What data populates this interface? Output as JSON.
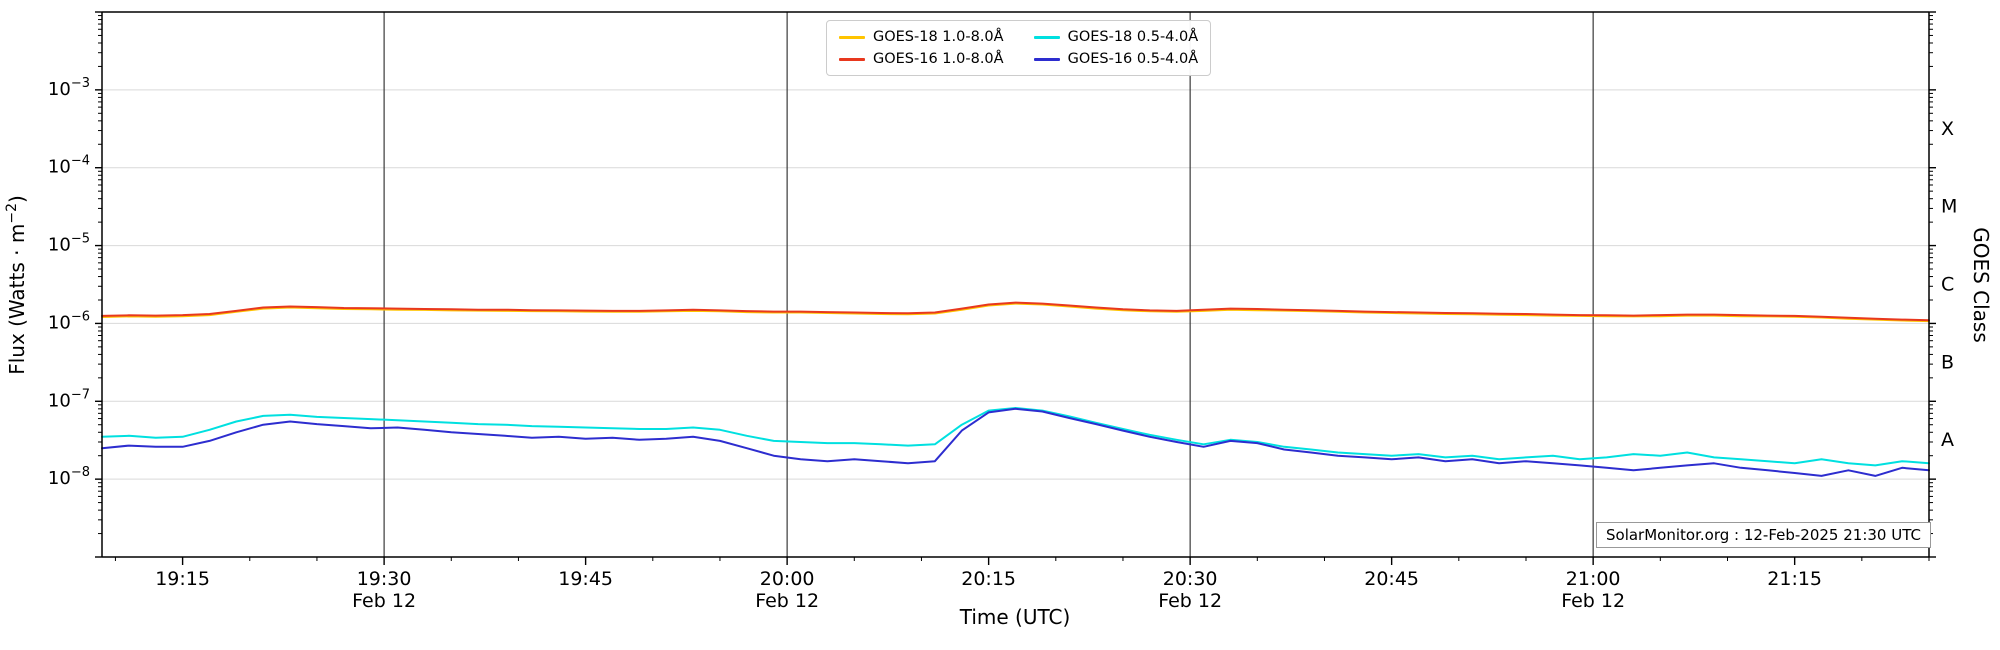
{
  "chart_data": {
    "type": "line",
    "title": "",
    "xlabel": "Time (UTC)",
    "ylabel": "Flux (Watts · m⁻²)",
    "ylabel_parts": {
      "prefix": "Flux (Watts · m",
      "sup": "−2",
      "suffix": ")"
    },
    "y2label": "GOES Class",
    "annotation": "SolarMonitor.org : 12-Feb-2025 21:30 UTC",
    "grid": {
      "h_color": "#d9d9d9",
      "v_color": "#3a3a3a",
      "v_line_minutes": [
        30,
        60,
        90,
        120
      ]
    },
    "x_axis": {
      "base_time": "19:00",
      "start_minutes": 9,
      "end_minutes": 145,
      "minor_tick_step_minutes": 5,
      "date_label": "Feb 12",
      "date_tick_minutes": [
        30,
        60,
        90,
        120
      ],
      "major_ticks": [
        {
          "minute": 15,
          "label": "19:15"
        },
        {
          "minute": 30,
          "label": "19:30"
        },
        {
          "minute": 45,
          "label": "19:45"
        },
        {
          "minute": 60,
          "label": "20:00"
        },
        {
          "minute": 75,
          "label": "20:15"
        },
        {
          "minute": 90,
          "label": "20:30"
        },
        {
          "minute": 105,
          "label": "20:45"
        },
        {
          "minute": 120,
          "label": "21:00"
        },
        {
          "minute": 135,
          "label": "21:15"
        }
      ]
    },
    "y_axis": {
      "scale": "log",
      "min": 1e-09,
      "max": 0.01,
      "labeled_decades": [
        -3,
        -4,
        -5,
        -6,
        -7,
        -8
      ]
    },
    "goes_classes": [
      {
        "label": "A",
        "flux": 3.16e-08
      },
      {
        "label": "B",
        "flux": 3.16e-07
      },
      {
        "label": "C",
        "flux": 3.16e-06
      },
      {
        "label": "M",
        "flux": 3.16e-05
      },
      {
        "label": "X",
        "flux": 0.000316
      }
    ],
    "x_minutes": [
      9,
      11,
      13,
      15,
      17,
      19,
      21,
      23,
      25,
      27,
      29,
      31,
      33,
      35,
      37,
      39,
      41,
      43,
      45,
      47,
      49,
      51,
      53,
      55,
      57,
      59,
      61,
      63,
      65,
      67,
      69,
      71,
      73,
      75,
      77,
      79,
      81,
      83,
      85,
      87,
      89,
      91,
      93,
      95,
      97,
      99,
      101,
      103,
      105,
      107,
      109,
      111,
      113,
      115,
      117,
      119,
      121,
      123,
      125,
      127,
      129,
      131,
      133,
      135,
      137,
      139,
      141,
      143,
      145
    ],
    "series": [
      {
        "name": "GOES-18 1.0-8.0Å",
        "color": "#ffc400",
        "unit_scale": 1e-06,
        "values": [
          1.21,
          1.23,
          1.22,
          1.24,
          1.28,
          1.41,
          1.55,
          1.6,
          1.57,
          1.53,
          1.52,
          1.5,
          1.49,
          1.47,
          1.46,
          1.45,
          1.44,
          1.43,
          1.42,
          1.41,
          1.41,
          1.43,
          1.45,
          1.43,
          1.4,
          1.38,
          1.38,
          1.36,
          1.34,
          1.32,
          1.31,
          1.34,
          1.5,
          1.7,
          1.8,
          1.75,
          1.65,
          1.55,
          1.48,
          1.43,
          1.41,
          1.45,
          1.5,
          1.48,
          1.46,
          1.44,
          1.41,
          1.38,
          1.36,
          1.34,
          1.32,
          1.31,
          1.29,
          1.28,
          1.26,
          1.25,
          1.24,
          1.23,
          1.24,
          1.26,
          1.26,
          1.24,
          1.23,
          1.22,
          1.19,
          1.15,
          1.12,
          1.09,
          1.07
        ]
      },
      {
        "name": "GOES-16 1.0-8.0Å",
        "color": "#e8381e",
        "unit_scale": 1e-06,
        "values": [
          1.25,
          1.27,
          1.26,
          1.28,
          1.32,
          1.45,
          1.6,
          1.65,
          1.62,
          1.58,
          1.57,
          1.55,
          1.53,
          1.52,
          1.5,
          1.5,
          1.48,
          1.47,
          1.46,
          1.45,
          1.45,
          1.47,
          1.5,
          1.47,
          1.44,
          1.42,
          1.42,
          1.4,
          1.38,
          1.36,
          1.35,
          1.38,
          1.55,
          1.75,
          1.85,
          1.8,
          1.7,
          1.6,
          1.52,
          1.47,
          1.45,
          1.5,
          1.55,
          1.53,
          1.5,
          1.48,
          1.45,
          1.42,
          1.4,
          1.38,
          1.36,
          1.35,
          1.33,
          1.32,
          1.3,
          1.28,
          1.27,
          1.26,
          1.28,
          1.3,
          1.3,
          1.28,
          1.26,
          1.25,
          1.22,
          1.18,
          1.15,
          1.12,
          1.1
        ]
      },
      {
        "name": "GOES-18 0.5-4.0Å",
        "color": "#00e0e0",
        "unit_scale": 1e-08,
        "values": [
          3.5,
          3.6,
          3.4,
          3.5,
          4.3,
          5.5,
          6.5,
          6.7,
          6.3,
          6.1,
          5.9,
          5.7,
          5.5,
          5.3,
          5.1,
          5.0,
          4.8,
          4.7,
          4.6,
          4.5,
          4.4,
          4.4,
          4.6,
          4.3,
          3.6,
          3.1,
          3.0,
          2.9,
          2.9,
          2.8,
          2.7,
          2.8,
          5.0,
          7.6,
          8.2,
          7.6,
          6.4,
          5.3,
          4.4,
          3.7,
          3.2,
          2.8,
          3.2,
          3.0,
          2.6,
          2.4,
          2.2,
          2.1,
          2.0,
          2.1,
          1.9,
          2.0,
          1.8,
          1.9,
          2.0,
          1.8,
          1.9,
          2.1,
          2.0,
          2.2,
          1.9,
          1.8,
          1.7,
          1.6,
          1.8,
          1.6,
          1.5,
          1.7,
          1.6
        ]
      },
      {
        "name": "GOES-16 0.5-4.0Å",
        "color": "#2d2dcf",
        "unit_scale": 1e-08,
        "values": [
          2.5,
          2.7,
          2.6,
          2.6,
          3.1,
          4.0,
          5.0,
          5.5,
          5.1,
          4.8,
          4.5,
          4.6,
          4.3,
          4.0,
          3.8,
          3.6,
          3.4,
          3.5,
          3.3,
          3.4,
          3.2,
          3.3,
          3.5,
          3.1,
          2.5,
          2.0,
          1.8,
          1.7,
          1.8,
          1.7,
          1.6,
          1.7,
          4.2,
          7.2,
          8.0,
          7.4,
          6.1,
          5.1,
          4.2,
          3.5,
          3.0,
          2.6,
          3.1,
          2.9,
          2.4,
          2.2,
          2.0,
          1.9,
          1.8,
          1.9,
          1.7,
          1.8,
          1.6,
          1.7,
          1.6,
          1.5,
          1.4,
          1.3,
          1.4,
          1.5,
          1.6,
          1.4,
          1.3,
          1.2,
          1.1,
          1.3,
          1.1,
          1.4,
          1.3
        ]
      }
    ]
  }
}
